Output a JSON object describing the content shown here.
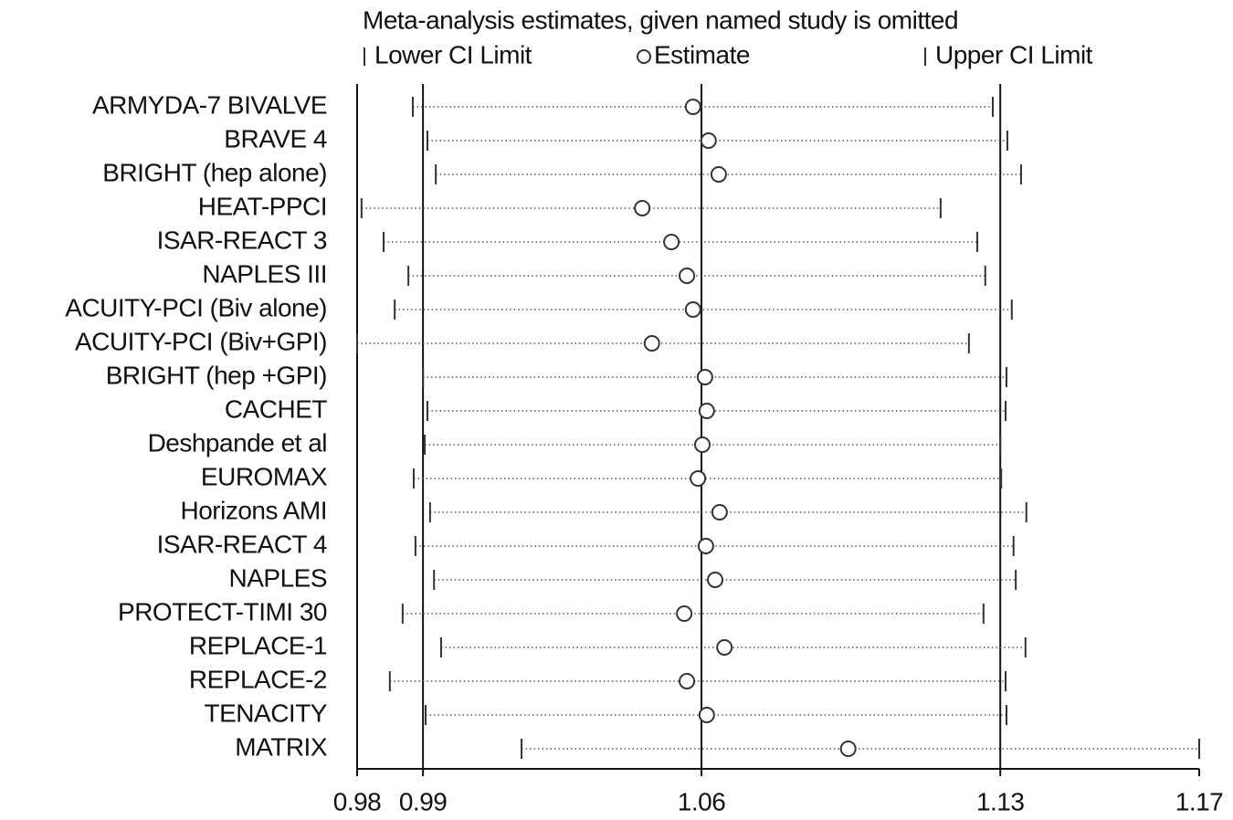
{
  "chart_data": {
    "type": "influence",
    "title": "Meta-analysis estimates, given named study is omitted",
    "categories": [
      "ARMYDA-7 BIVALVE",
      "BRAVE 4",
      "BRIGHT (hep alone)",
      "HEAT-PPCI",
      "ISAR-REACT 3",
      "NAPLES III",
      "ACUITY-PCI (Biv alone)",
      "ACUITY-PCI (Biv+GPI)",
      "BRIGHT (hep +GPI)",
      "CACHET",
      "Deshpande et al",
      "EUROMAX",
      "Horizons AMI",
      "ISAR-REACT 4",
      "NAPLES",
      "PROTECT-TIMI 30",
      "REPLACE-1",
      "REPLACE-2",
      "TENACITY",
      "MATRIX"
    ],
    "series": [
      {
        "name": "Lower CI Limit",
        "color": "#333333",
        "values": [
          0.9921,
          0.9954,
          0.9973,
          0.9805,
          0.9855,
          0.9911,
          0.988,
          0.9795,
          0.9944,
          0.9954,
          0.9948,
          0.9923,
          0.996,
          0.9927,
          0.9969,
          0.9898,
          0.9985,
          0.9869,
          0.995,
          1.0167
        ]
      },
      {
        "name": "Estimate",
        "color": "#333333",
        "values": [
          1.0555,
          1.059,
          1.0613,
          1.044,
          1.0506,
          1.0541,
          1.0555,
          1.0462,
          1.0582,
          1.0586,
          1.0576,
          1.0566,
          1.0615,
          1.0584,
          1.0605,
          1.0535,
          1.0626,
          1.0541,
          1.0586,
          1.0906
        ]
      },
      {
        "name": "Upper CI Limit",
        "color": "#333333",
        "values": [
          1.1233,
          1.1266,
          1.1297,
          1.1115,
          1.1198,
          1.1216,
          1.1276,
          1.1179,
          1.1264,
          1.1262,
          1.125,
          1.1252,
          1.1309,
          1.128,
          1.1285,
          1.1212,
          1.1307,
          1.1262,
          1.1264,
          1.17
        ]
      }
    ],
    "xlim": [
      0.9795,
      1.17
    ],
    "xticks": [
      {
        "value": 0.9795,
        "label": "0.98"
      },
      {
        "value": 0.9944,
        "label": "0.99"
      },
      {
        "value": 1.0574,
        "label": "1.06"
      },
      {
        "value": 1.125,
        "label": "1.13"
      },
      {
        "value": 1.17,
        "label": "1.17"
      }
    ],
    "grid": true
  }
}
